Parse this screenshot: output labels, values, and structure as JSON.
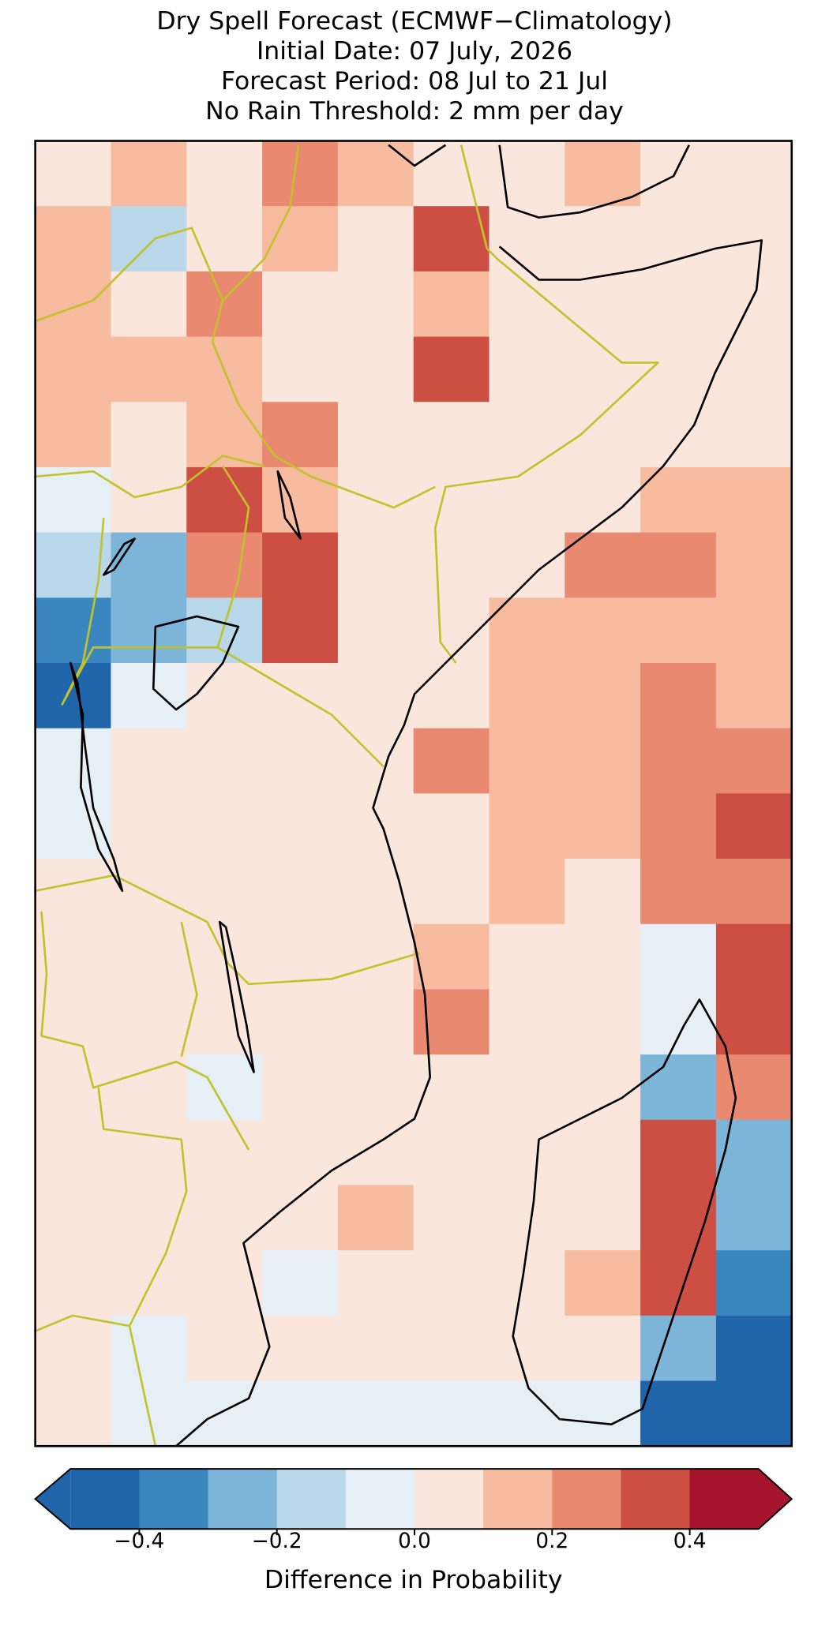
{
  "chart_data": {
    "type": "map",
    "title": [
      "Dry Spell Forecast (ECMWF−Climatology)",
      "Initial Date: 07 July, 2026",
      "Forecast Period: 08 Jul to 21 Jul",
      "No Rain Threshold: 2 mm per day"
    ],
    "grid": [
      [
        0.05,
        0.15,
        0.05,
        0.25,
        0.15,
        0.05,
        0.05,
        0.15,
        0.05,
        0.05
      ],
      [
        0.15,
        -0.15,
        0.05,
        0.15,
        0.05,
        0.35,
        0.05,
        0.05,
        0.05,
        0.05
      ],
      [
        0.15,
        0.05,
        0.25,
        0.05,
        0.05,
        0.15,
        0.05,
        0.05,
        0.05,
        0.05
      ],
      [
        0.15,
        0.15,
        0.15,
        0.05,
        0.05,
        0.35,
        0.05,
        0.05,
        0.05,
        0.05
      ],
      [
        0.15,
        0.05,
        0.15,
        0.25,
        0.05,
        0.05,
        0.05,
        0.05,
        0.05,
        0.05
      ],
      [
        -0.05,
        0.05,
        0.35,
        0.15,
        0.05,
        0.05,
        0.05,
        0.05,
        0.15,
        0.15
      ],
      [
        -0.15,
        -0.25,
        0.25,
        0.35,
        0.05,
        0.05,
        0.05,
        0.25,
        0.25,
        0.15
      ],
      [
        -0.35,
        -0.25,
        -0.15,
        0.35,
        0.05,
        0.05,
        0.15,
        0.15,
        0.15,
        0.15
      ],
      [
        -0.45,
        -0.05,
        0.05,
        0.05,
        0.05,
        0.05,
        0.15,
        0.15,
        0.25,
        0.15
      ],
      [
        -0.05,
        0.05,
        0.05,
        0.05,
        0.05,
        0.25,
        0.15,
        0.15,
        0.25,
        0.25
      ],
      [
        -0.05,
        0.05,
        0.05,
        0.05,
        0.05,
        0.05,
        0.15,
        0.15,
        0.25,
        0.35
      ],
      [
        0.05,
        0.05,
        0.05,
        0.05,
        0.05,
        0.05,
        0.15,
        0.05,
        0.25,
        0.25
      ],
      [
        0.05,
        0.05,
        0.05,
        0.05,
        0.05,
        0.15,
        0.05,
        0.05,
        -0.05,
        0.35
      ],
      [
        0.05,
        0.05,
        0.05,
        0.05,
        0.05,
        0.25,
        0.05,
        0.05,
        -0.05,
        0.35
      ],
      [
        0.05,
        0.05,
        -0.05,
        0.05,
        0.05,
        0.05,
        0.05,
        0.05,
        -0.25,
        0.25
      ],
      [
        0.05,
        0.05,
        0.05,
        0.05,
        0.05,
        0.05,
        0.05,
        0.05,
        0.35,
        -0.25
      ],
      [
        0.05,
        0.05,
        0.05,
        0.05,
        0.15,
        0.05,
        0.05,
        0.05,
        0.35,
        -0.25
      ],
      [
        0.05,
        0.05,
        0.05,
        -0.05,
        0.05,
        0.05,
        0.05,
        0.15,
        0.35,
        -0.35
      ],
      [
        0.05,
        -0.05,
        0.05,
        0.05,
        0.05,
        0.05,
        0.05,
        0.05,
        -0.25,
        -0.45
      ],
      [
        0.05,
        -0.05,
        -0.05,
        -0.05,
        -0.05,
        -0.05,
        -0.05,
        -0.05,
        -0.45,
        -0.45
      ]
    ],
    "colorbar": {
      "bounds": [
        -0.5,
        -0.4,
        -0.3,
        -0.2,
        -0.1,
        0,
        0.1,
        0.2,
        0.3,
        0.4,
        0.5
      ],
      "colors": [
        "#2064aa",
        "#3a87c0",
        "#7db5d8",
        "#b9d8ea",
        "#e6eff5",
        "#fae6dd",
        "#f7bba0",
        "#e98a70",
        "#cd4f44",
        "#a7142d"
      ],
      "extend": "both",
      "ticks": [
        {
          "value": -0.4,
          "label": "−0.4"
        },
        {
          "value": -0.2,
          "label": "−0.2"
        },
        {
          "value": 0,
          "label": "0.0"
        },
        0.2,
        0.4
      ],
      "label": "Difference in Probability"
    }
  }
}
